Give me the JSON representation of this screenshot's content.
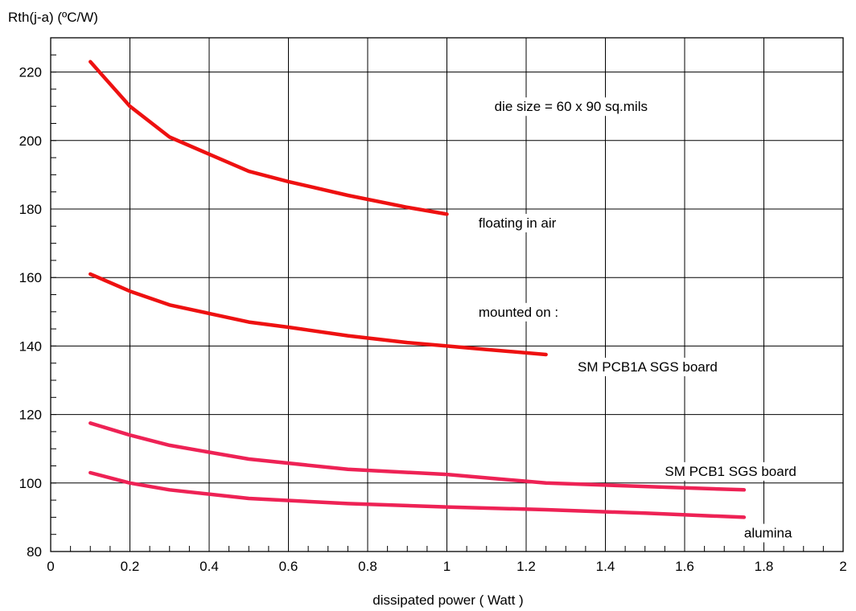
{
  "chart_data": {
    "type": "line",
    "title": "",
    "xlabel": "dissipated power ( Watt )",
    "ylabel": "Rth(j-a) (ºC/W)",
    "xlim": [
      0,
      2
    ],
    "ylim": [
      80,
      230
    ],
    "xticks": [
      0,
      0.2,
      0.4,
      0.6,
      0.8,
      1,
      1.2,
      1.4,
      1.6,
      1.8,
      2
    ],
    "xtick_labels": [
      "0",
      "0.2",
      "0.4",
      "0.6",
      "0.8",
      "1",
      "1.2",
      "1.4",
      "1.6",
      "1.8",
      "2"
    ],
    "yticks": [
      80,
      100,
      120,
      140,
      160,
      180,
      200,
      220
    ],
    "ytick_labels": [
      "80",
      "100",
      "120",
      "140",
      "160",
      "180",
      "200",
      "220"
    ],
    "grid": true,
    "series": [
      {
        "label": "floating in air",
        "color": "#ee1111",
        "x": [
          0.1,
          0.2,
          0.3,
          0.4,
          0.5,
          0.6,
          0.75,
          0.9,
          1.0
        ],
        "y": [
          223,
          210,
          201,
          196,
          191,
          188,
          184,
          180.5,
          178.5
        ]
      },
      {
        "label": "SM PCB1A SGS board",
        "color": "#ee1111",
        "x": [
          0.1,
          0.2,
          0.3,
          0.4,
          0.5,
          0.6,
          0.75,
          0.9,
          1.0,
          1.1,
          1.25
        ],
        "y": [
          161,
          156,
          152,
          149.5,
          147,
          145.5,
          143,
          141,
          140,
          139,
          137.5
        ]
      },
      {
        "label": "SM PCB1 SGS board",
        "color": "#ee2255",
        "x": [
          0.1,
          0.2,
          0.3,
          0.4,
          0.5,
          0.75,
          1.0,
          1.25,
          1.5,
          1.75
        ],
        "y": [
          117.5,
          114,
          111,
          109,
          107,
          104,
          102.5,
          100,
          99,
          98
        ]
      },
      {
        "label": "alumina",
        "color": "#ee2255",
        "x": [
          0.1,
          0.2,
          0.3,
          0.5,
          0.75,
          1.0,
          1.25,
          1.5,
          1.75
        ],
        "y": [
          103,
          100,
          98,
          95.5,
          94,
          93,
          92.2,
          91.2,
          90
        ]
      }
    ],
    "annotations": [
      {
        "text": "die size = 60 x 90 sq.mils",
        "x": 1.12,
        "y": 210
      },
      {
        "text": "floating in air",
        "x": 1.08,
        "y": 176
      },
      {
        "text": "mounted on :",
        "x": 1.08,
        "y": 150
      },
      {
        "text": "SM PCB1A SGS board",
        "x": 1.33,
        "y": 134
      },
      {
        "text": "SM PCB1 SGS board",
        "x": 1.55,
        "y": 103.5
      },
      {
        "text": "alumina",
        "x": 1.75,
        "y": 85.5
      }
    ]
  }
}
